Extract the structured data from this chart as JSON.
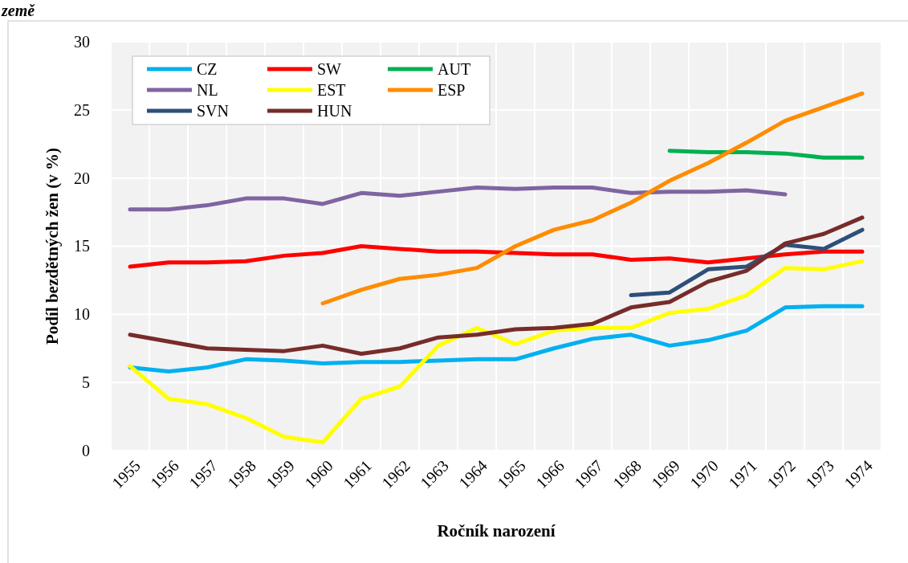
{
  "chart_data": {
    "type": "line",
    "title": "země",
    "xlabel": "Ročník narození",
    "ylabel": "Podíl bezdětných žen (v %)",
    "categories": [
      "1955",
      "1956",
      "1957",
      "1958",
      "1959",
      "1960",
      "1961",
      "1962",
      "1963",
      "1964",
      "1965",
      "1966",
      "1967",
      "1968",
      "1969",
      "1970",
      "1971",
      "1972",
      "1973",
      "1974"
    ],
    "ylim": [
      0,
      30
    ],
    "yticks": [
      0,
      5,
      10,
      15,
      20,
      25,
      30
    ],
    "grid": true,
    "legend": "top left",
    "marker": "none",
    "line_style": "solid",
    "series": [
      {
        "name": "CZ",
        "color": "#00b0f0",
        "values": [
          6.1,
          5.8,
          6.1,
          6.7,
          6.6,
          6.4,
          6.5,
          6.5,
          6.6,
          6.7,
          6.7,
          7.5,
          8.2,
          8.5,
          7.7,
          8.1,
          8.8,
          10.5,
          10.6,
          10.6
        ]
      },
      {
        "name": "SW",
        "color": "#ff0000",
        "values": [
          13.5,
          13.8,
          13.8,
          13.9,
          14.3,
          14.5,
          15.0,
          14.8,
          14.6,
          14.6,
          14.5,
          14.4,
          14.4,
          14.0,
          14.1,
          13.8,
          14.1,
          14.4,
          14.6,
          14.6
        ]
      },
      {
        "name": "AUT",
        "color": "#00b050",
        "values": [
          null,
          null,
          null,
          null,
          null,
          null,
          null,
          null,
          null,
          null,
          null,
          null,
          null,
          null,
          22.0,
          21.9,
          21.9,
          21.8,
          21.5,
          21.5
        ]
      },
      {
        "name": "NL",
        "color": "#8064a2",
        "values": [
          17.7,
          17.7,
          18.0,
          18.5,
          18.5,
          18.1,
          18.9,
          18.7,
          19.0,
          19.3,
          19.2,
          19.3,
          19.3,
          18.9,
          19.0,
          19.0,
          19.1,
          18.8,
          null,
          null
        ]
      },
      {
        "name": "EST",
        "color": "#ffff00",
        "values": [
          6.2,
          3.8,
          3.4,
          2.4,
          1.0,
          0.6,
          3.8,
          4.7,
          7.7,
          9.0,
          7.8,
          8.8,
          9.0,
          9.0,
          10.1,
          10.4,
          11.4,
          13.4,
          13.3,
          13.9
        ]
      },
      {
        "name": "ESP",
        "color": "#ff8c00",
        "values": [
          null,
          null,
          null,
          null,
          null,
          10.8,
          11.8,
          12.6,
          12.9,
          13.4,
          15.0,
          16.2,
          16.9,
          18.2,
          19.8,
          21.1,
          22.6,
          24.2,
          25.2,
          26.2
        ]
      },
      {
        "name": "SVN",
        "color": "#2e4f7a",
        "values": [
          null,
          null,
          null,
          null,
          null,
          null,
          null,
          null,
          null,
          null,
          null,
          null,
          null,
          11.4,
          11.6,
          13.3,
          13.5,
          15.1,
          14.8,
          16.2
        ]
      },
      {
        "name": "HUN",
        "color": "#772c2a",
        "values": [
          8.5,
          8.0,
          7.5,
          7.4,
          7.3,
          7.7,
          7.1,
          7.5,
          8.3,
          8.5,
          8.9,
          9.0,
          9.3,
          10.5,
          10.9,
          12.4,
          13.2,
          15.2,
          15.9,
          17.1
        ]
      }
    ]
  }
}
